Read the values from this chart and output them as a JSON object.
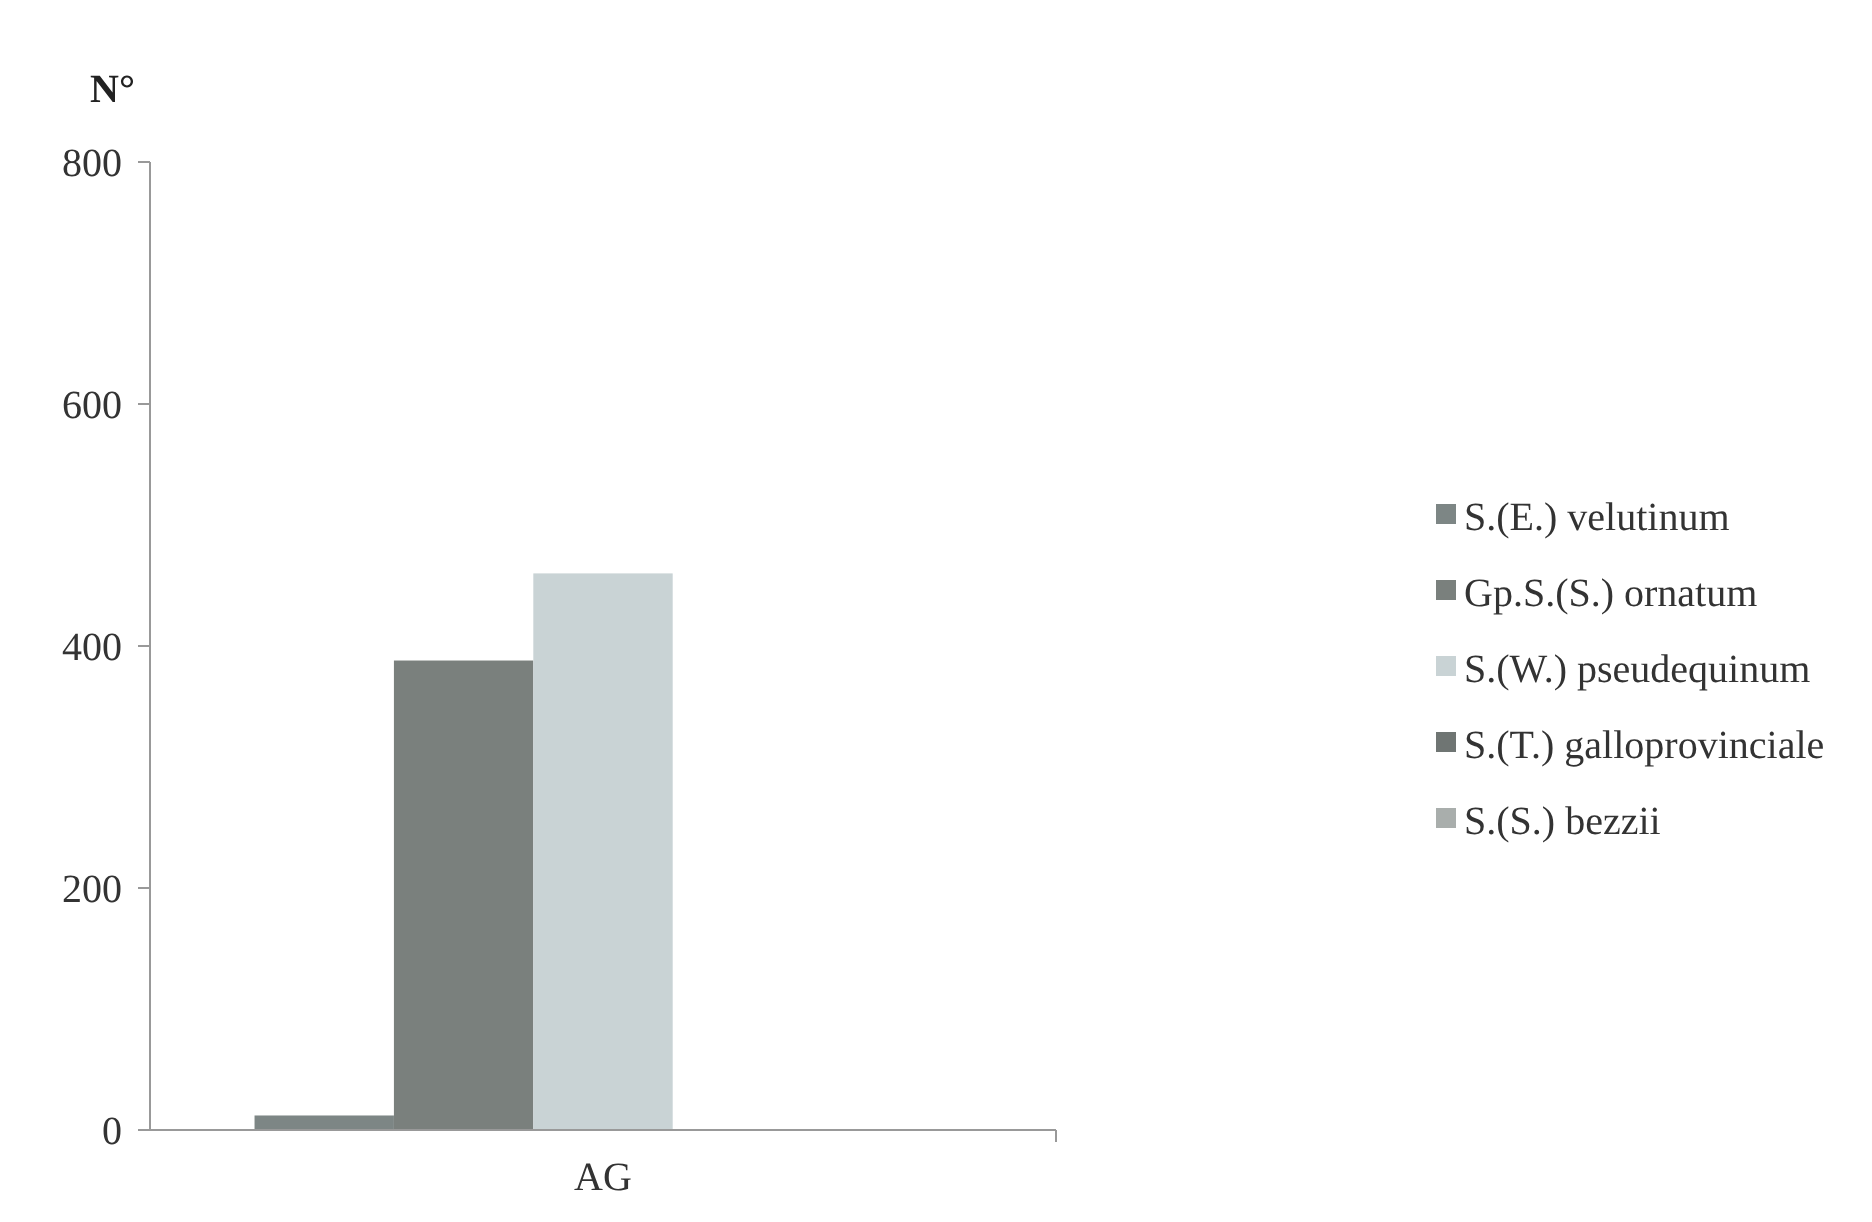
{
  "chart_data": {
    "type": "bar",
    "ylabel": "N°",
    "categories": [
      "AG"
    ],
    "series": [
      {
        "name": "S.(E.) velutinum",
        "color": "#7d8685",
        "values": [
          12
        ]
      },
      {
        "name": "Gp.S.(S.) ornatum",
        "color": "#7a807d",
        "values": [
          388
        ]
      },
      {
        "name": "S.(W.) pseudequinum",
        "color": "#c9d3d5",
        "values": [
          460
        ]
      },
      {
        "name": "S.(T.) galloprovinciale",
        "color": "#6f7573",
        "values": [
          0
        ]
      },
      {
        "name": "S.(S.) bezzii",
        "color": "#a9aeac",
        "values": [
          0
        ]
      }
    ],
    "ylim": [
      0,
      800
    ],
    "yticks": [
      0,
      200,
      400,
      600,
      800
    ],
    "grid": false,
    "legend": "right"
  }
}
